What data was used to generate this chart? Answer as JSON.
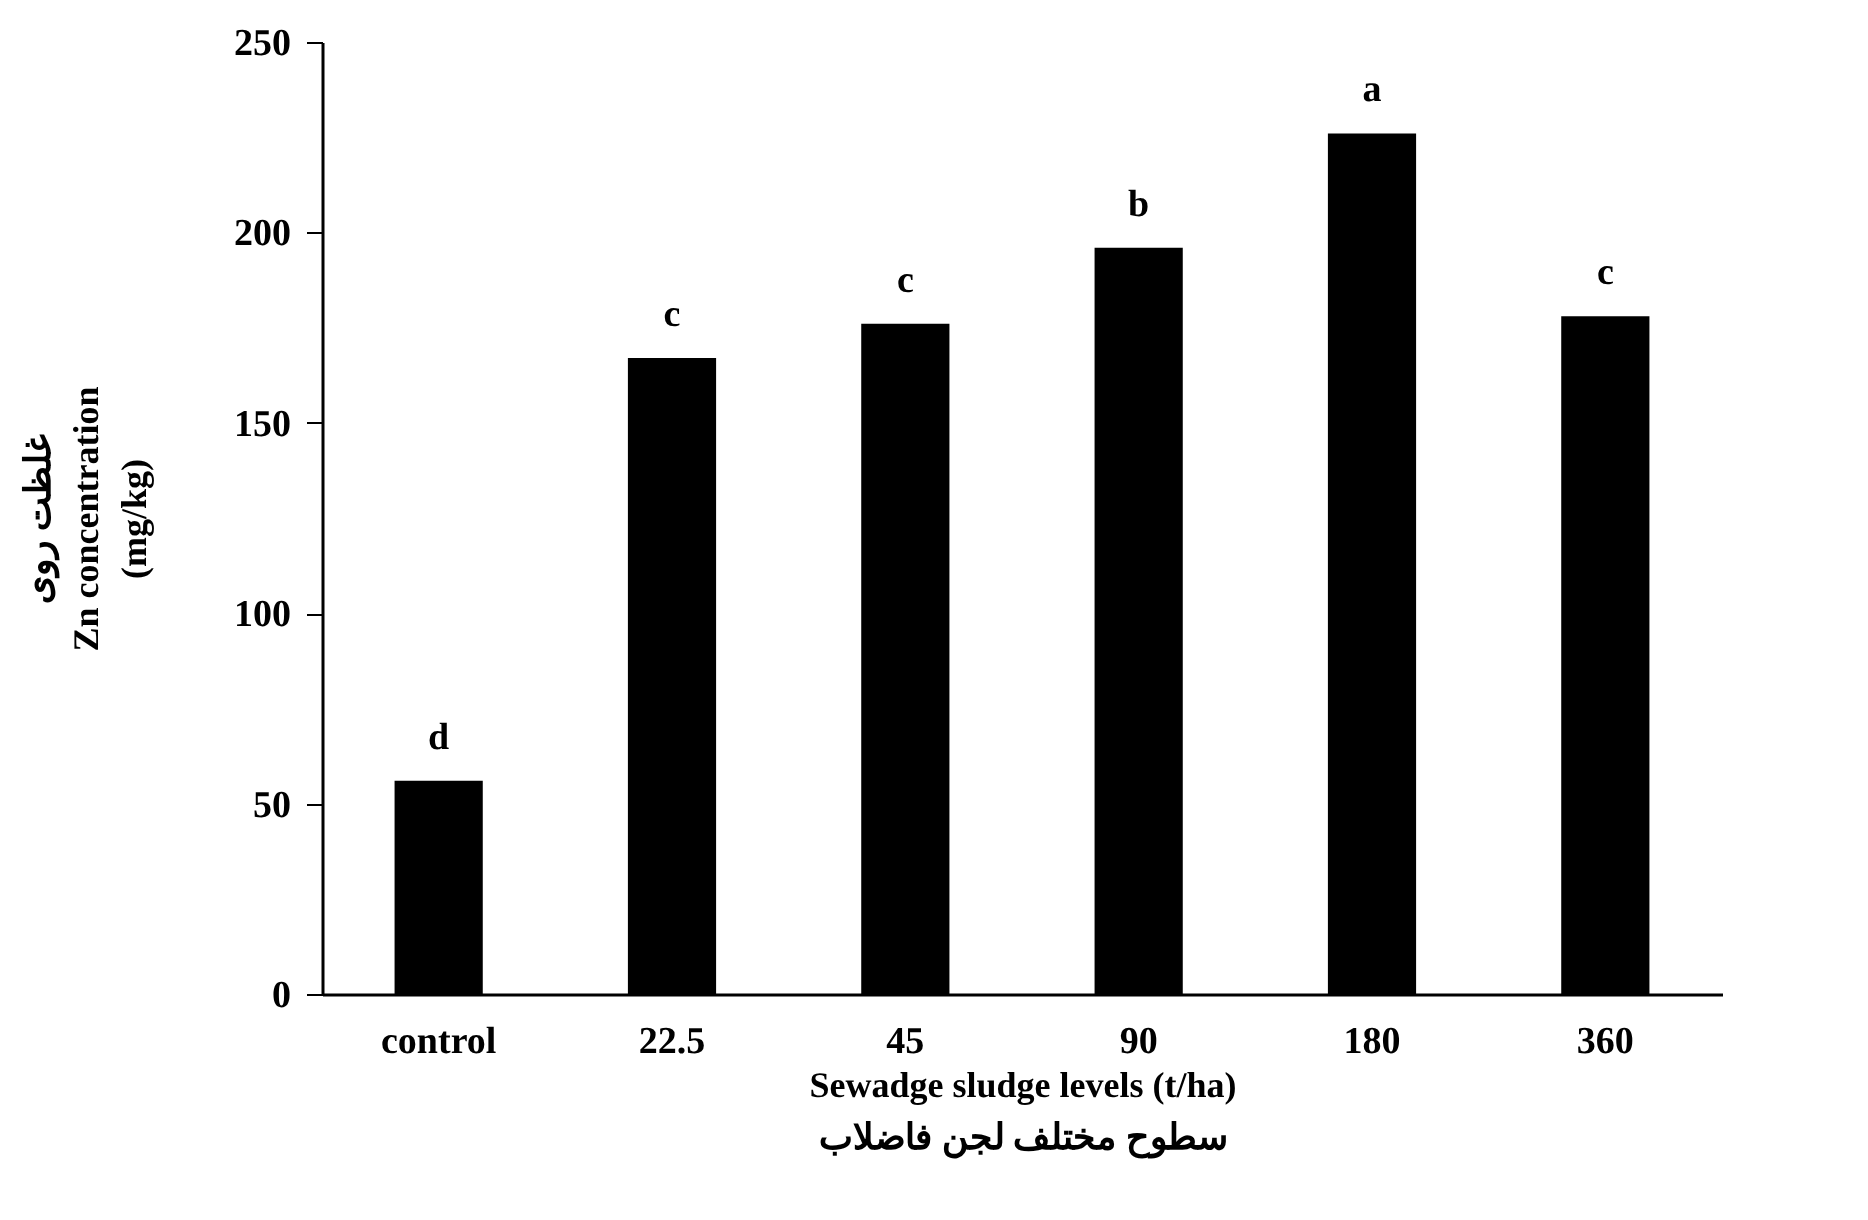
{
  "chart_data": {
    "type": "bar",
    "xlabel": "Sewadge sludge levels (t/ha)\nسطوح مختلف لجن فاضلاب",
    "ylabel": "غلظت روی\nZn concentration\n(mg/kg)",
    "categories": [
      "control",
      "22.5",
      "45",
      "90",
      "180",
      "360"
    ],
    "values": [
      56,
      167,
      176,
      196,
      226,
      178
    ],
    "color": "#000000",
    "ylim": [
      0,
      250
    ],
    "yticks": [
      0,
      50,
      100,
      150,
      200,
      250
    ],
    "grid": false,
    "annotations": [
      {
        "text": "d",
        "x": "control",
        "y": 56
      },
      {
        "text": "c",
        "x": "22.5",
        "y": 167
      },
      {
        "text": "c",
        "x": "45",
        "y": 176
      },
      {
        "text": "b",
        "x": "90",
        "y": 196
      },
      {
        "text": "a",
        "x": "180",
        "y": 226
      },
      {
        "text": "c",
        "x": "360",
        "y": 178
      }
    ]
  }
}
